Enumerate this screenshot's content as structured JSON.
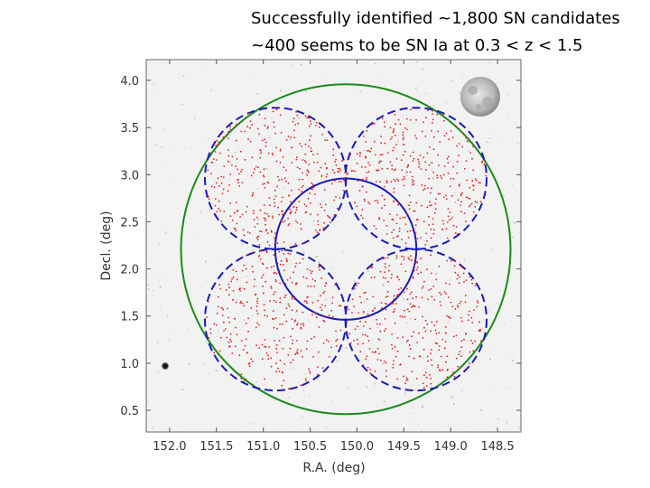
{
  "slide": {
    "line1": "Successfully identified ~1,800 SN candidates",
    "line2": "~400 seems to be SN Ia at 0.3 < z < 1.5"
  },
  "chart_data": {
    "type": "scatter",
    "xlabel": "R.A. (deg)",
    "ylabel": "Decl. (deg)",
    "xlim": [
      152.25,
      148.25
    ],
    "ylim": [
      0.27,
      4.22
    ],
    "x_ticks": [
      "152.0",
      "151.5",
      "151.0",
      "150.5",
      "150.0",
      "149.5",
      "149.0",
      "148.5"
    ],
    "x_tick_values": [
      152.0,
      151.5,
      151.0,
      150.5,
      150.0,
      149.5,
      149.0,
      148.5
    ],
    "y_ticks": [
      "0.5",
      "1.0",
      "1.5",
      "2.0",
      "2.5",
      "3.0",
      "3.5",
      "4.0"
    ],
    "y_tick_values": [
      0.5,
      1.0,
      1.5,
      2.0,
      2.5,
      3.0,
      3.5,
      4.0
    ],
    "background": "grayscale sky image (COSMOS field)",
    "overlays": [
      {
        "name": "outer field",
        "shape": "circle",
        "style": "solid",
        "color": "#1a8a1a",
        "center_ra": 150.12,
        "center_dec": 2.21,
        "radius_deg": 1.75
      },
      {
        "name": "center pointing",
        "shape": "circle",
        "style": "solid",
        "color": "#1a1ab8",
        "center_ra": 150.12,
        "center_dec": 2.21,
        "radius_deg": 0.75
      },
      {
        "name": "pointing NE",
        "shape": "circle",
        "style": "dashed",
        "color": "#1a1ab8",
        "center_ra": 150.87,
        "center_dec": 2.96,
        "radius_deg": 0.75
      },
      {
        "name": "pointing NW",
        "shape": "circle",
        "style": "dashed",
        "color": "#1a1ab8",
        "center_ra": 149.37,
        "center_dec": 2.96,
        "radius_deg": 0.75
      },
      {
        "name": "pointing SE",
        "shape": "circle",
        "style": "dashed",
        "color": "#1a1ab8",
        "center_ra": 150.87,
        "center_dec": 1.46,
        "radius_deg": 0.75
      },
      {
        "name": "pointing SW",
        "shape": "circle",
        "style": "dashed",
        "color": "#1a1ab8",
        "center_ra": 149.37,
        "center_dec": 1.46,
        "radius_deg": 0.75
      }
    ],
    "series": [
      {
        "name": "SN candidates",
        "color": "#e02020",
        "marker": "dot",
        "count_approx": 1800,
        "distribution": "uniform within the union of the five pointing circles"
      }
    ]
  }
}
